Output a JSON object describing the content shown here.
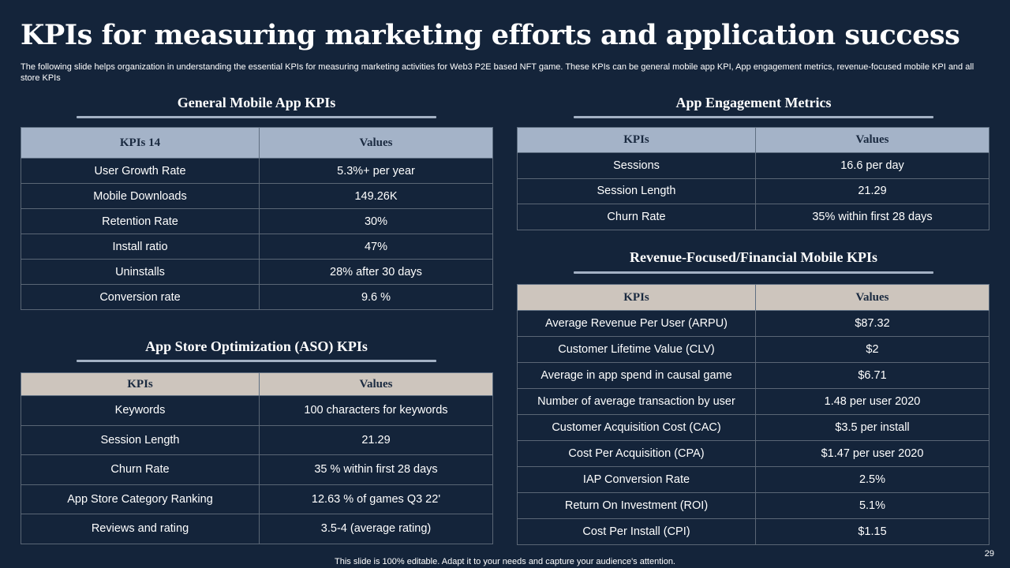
{
  "title": "KPIs for measuring marketing efforts and application success",
  "subtitle": "The following slide helps organization in understanding the essential KPIs for measuring marketing activities for Web3 P2E based NFT game. These KPIs can be general mobile app KPI, App engagement metrics, revenue-focused mobile KPI and all store KPIs",
  "general": {
    "heading": "General Mobile App KPIs",
    "col1": "KPIs 14",
    "col2": "Values",
    "rows": [
      {
        "kpi": "User Growth Rate",
        "value": "5.3%+ per year"
      },
      {
        "kpi": "Mobile Downloads",
        "value": "149.26K"
      },
      {
        "kpi": "Retention Rate",
        "value": "30%"
      },
      {
        "kpi": "Install ratio",
        "value": "47%"
      },
      {
        "kpi": "Uninstalls",
        "value": "28% after 30 days"
      },
      {
        "kpi": "Conversion rate",
        "value": "9.6 %"
      }
    ]
  },
  "aso": {
    "heading": "App Store Optimization (ASO) KPIs",
    "col1": "KPIs",
    "col2": "Values",
    "rows": [
      {
        "kpi": "Keywords",
        "value": "100 characters for keywords"
      },
      {
        "kpi": "Session Length",
        "value": "21.29"
      },
      {
        "kpi": "Churn Rate",
        "value": "35 % within first 28 days"
      },
      {
        "kpi": "App Store Category Ranking",
        "value": "12.63 % of games Q3 22'"
      },
      {
        "kpi": "Reviews and rating",
        "value": "3.5-4 (average rating)"
      }
    ]
  },
  "engagement": {
    "heading": "App Engagement Metrics",
    "col1": "KPIs",
    "col2": "Values",
    "rows": [
      {
        "kpi": "Sessions",
        "value": "16.6 per day"
      },
      {
        "kpi": "Session Length",
        "value": "21.29"
      },
      {
        "kpi": "Churn Rate",
        "value": "35% within first 28 days"
      }
    ]
  },
  "revenue": {
    "heading": "Revenue-Focused/Financial Mobile KPIs",
    "col1": "KPIs",
    "col2": "Values",
    "rows": [
      {
        "kpi": "Average Revenue Per User (ARPU)",
        "value": "$87.32"
      },
      {
        "kpi": "Customer Lifetime Value (CLV)",
        "value": "$2"
      },
      {
        "kpi": "Average in app spend in causal game",
        "value": "$6.71"
      },
      {
        "kpi": "Number of average transaction by user",
        "value": "1.48 per user 2020"
      },
      {
        "kpi": "Customer Acquisition Cost (CAC)",
        "value": "$3.5 per install"
      },
      {
        "kpi": "Cost Per Acquisition (CPA)",
        "value": "$1.47 per user 2020"
      },
      {
        "kpi": "IAP Conversion Rate",
        "value": "2.5%"
      },
      {
        "kpi": "Return On Investment (ROI)",
        "value": "5.1%"
      },
      {
        "kpi": "Cost Per Install (CPI)",
        "value": "$1.15"
      }
    ]
  },
  "footer": "This slide is 100% editable. Adapt it to your needs and capture your audience's attention.",
  "page_number": "29"
}
